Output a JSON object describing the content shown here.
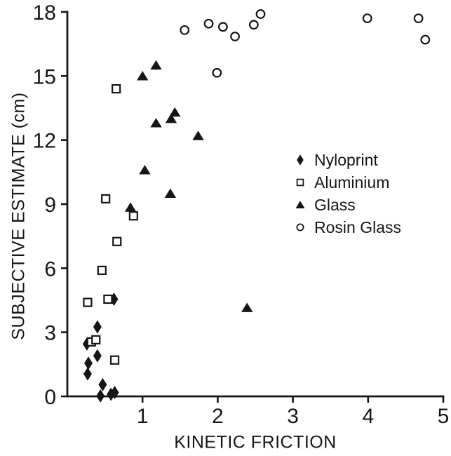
{
  "figure": {
    "background": "#ffffff",
    "ink": "#161616"
  },
  "chart_data": {
    "type": "scatter",
    "title": "",
    "xlabel": "KINETIC FRICTION",
    "ylabel": "SUBJECTIVE ESTIMATE (cm)",
    "xlim": [
      0,
      5
    ],
    "ylim": [
      0,
      18
    ],
    "x_ticks": [
      "1",
      "2",
      "3",
      "4",
      "5"
    ],
    "y_ticks": [
      "0",
      "3",
      "6",
      "9",
      "12",
      "15",
      "18"
    ],
    "grid": false,
    "legend_position": "middle-right",
    "series": [
      {
        "name": "Nyloprint",
        "marker": "diamond-filled",
        "points": [
          [
            0.4,
            3.25
          ],
          [
            0.26,
            2.45
          ],
          [
            0.4,
            1.9
          ],
          [
            0.28,
            1.55
          ],
          [
            0.27,
            1.05
          ],
          [
            0.47,
            0.55
          ],
          [
            0.44,
            0.02
          ],
          [
            0.58,
            0.1
          ],
          [
            0.63,
            0.18
          ],
          [
            0.62,
            4.55
          ]
        ]
      },
      {
        "name": "Aluminium",
        "marker": "square-open",
        "points": [
          [
            0.27,
            4.4
          ],
          [
            0.54,
            4.55
          ],
          [
            0.32,
            2.55
          ],
          [
            0.38,
            2.65
          ],
          [
            0.63,
            1.7
          ],
          [
            0.46,
            5.9
          ],
          [
            0.66,
            7.25
          ],
          [
            0.51,
            9.25
          ],
          [
            0.88,
            8.45
          ],
          [
            0.65,
            14.4
          ]
        ]
      },
      {
        "name": "Glass",
        "marker": "triangle-filled",
        "points": [
          [
            0.84,
            8.85
          ],
          [
            1.03,
            10.6
          ],
          [
            1.18,
            12.8
          ],
          [
            1.38,
            13.0
          ],
          [
            1.43,
            13.3
          ],
          [
            1.74,
            12.2
          ],
          [
            1.37,
            9.5
          ],
          [
            1.0,
            15.0
          ],
          [
            1.18,
            15.5
          ],
          [
            2.39,
            4.15
          ]
        ]
      },
      {
        "name": "Rosin Glass",
        "marker": "circle-open",
        "points": [
          [
            1.56,
            17.15
          ],
          [
            1.88,
            17.45
          ],
          [
            2.07,
            17.3
          ],
          [
            1.99,
            15.15
          ],
          [
            2.23,
            16.85
          ],
          [
            2.48,
            17.4
          ],
          [
            2.57,
            17.9
          ],
          [
            3.99,
            17.7
          ],
          [
            4.67,
            17.7
          ],
          [
            4.76,
            16.7
          ]
        ]
      }
    ]
  }
}
